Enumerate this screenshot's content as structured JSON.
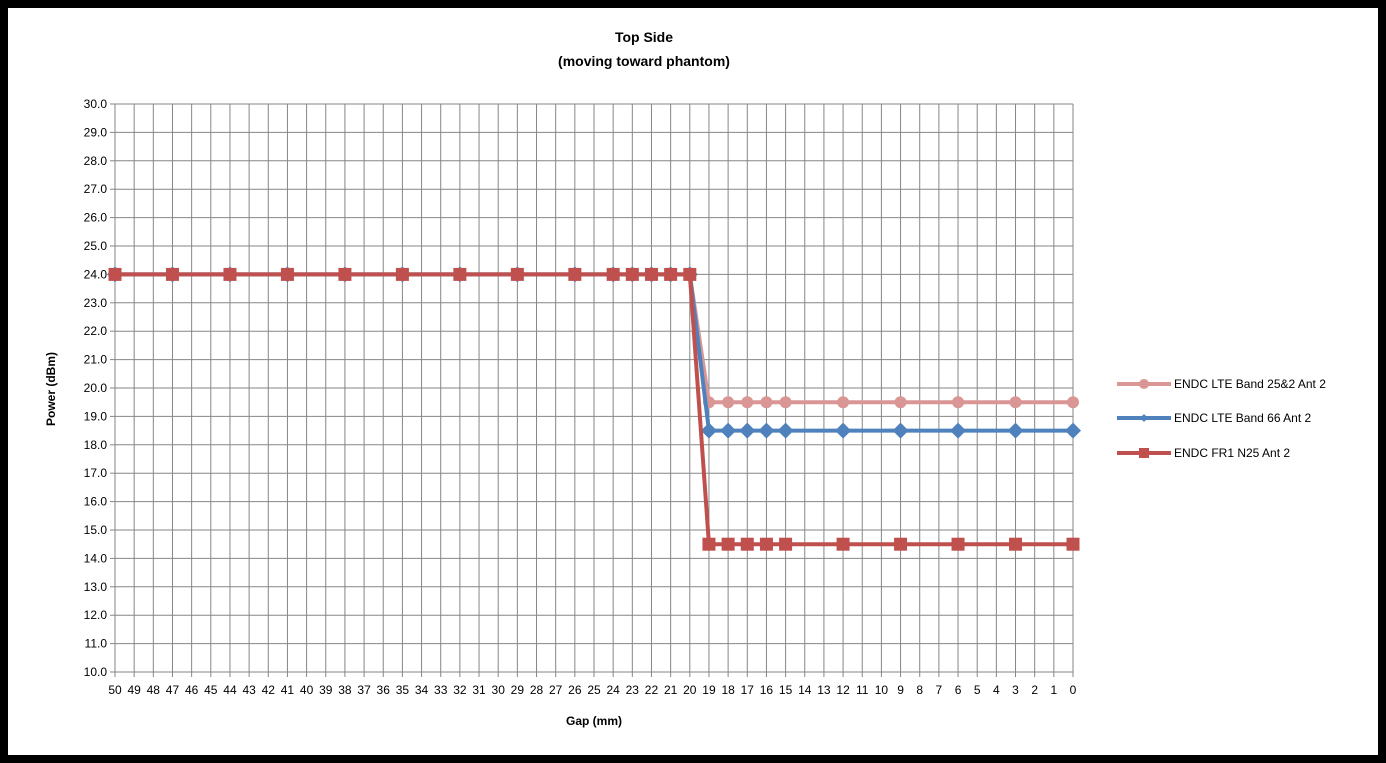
{
  "chart_data": {
    "type": "line",
    "title": [
      "Top Side",
      "(moving toward phantom)"
    ],
    "xlabel": "Gap (mm)",
    "ylabel": "Power (dBm)",
    "ylim": [
      10.0,
      30.0
    ],
    "y_ticks": [
      "10.0",
      "11.0",
      "12.0",
      "13.0",
      "14.0",
      "15.0",
      "16.0",
      "17.0",
      "18.0",
      "19.0",
      "20.0",
      "21.0",
      "22.0",
      "23.0",
      "24.0",
      "25.0",
      "26.0",
      "27.0",
      "28.0",
      "29.0",
      "30.0"
    ],
    "x_ticks": [
      "50",
      "49",
      "48",
      "47",
      "46",
      "45",
      "44",
      "43",
      "42",
      "41",
      "40",
      "39",
      "38",
      "37",
      "36",
      "35",
      "34",
      "33",
      "32",
      "31",
      "30",
      "29",
      "28",
      "27",
      "26",
      "25",
      "24",
      "23",
      "22",
      "21",
      "20",
      "19",
      "18",
      "17",
      "16",
      "15",
      "14",
      "13",
      "12",
      "11",
      "10",
      "9",
      "8",
      "7",
      "6",
      "5",
      "4",
      "3",
      "2",
      "1",
      "0"
    ],
    "x": [
      50,
      47,
      44,
      41,
      38,
      35,
      32,
      29,
      26,
      24,
      23,
      22,
      21,
      20,
      19,
      18,
      17,
      16,
      15,
      12,
      9,
      6,
      3,
      0
    ],
    "grid": true,
    "legend_position": "right",
    "series": [
      {
        "name": "ENDC LTE Band 25&2 Ant 2",
        "color": "#D99694",
        "marker": "circle",
        "values": [
          24.0,
          24.0,
          24.0,
          24.0,
          24.0,
          24.0,
          24.0,
          24.0,
          24.0,
          24.0,
          24.0,
          24.0,
          24.0,
          24.0,
          19.5,
          19.5,
          19.5,
          19.5,
          19.5,
          19.5,
          19.5,
          19.5,
          19.5,
          19.5
        ]
      },
      {
        "name": "ENDC LTE Band 66 Ant 2",
        "color": "#4F81BD",
        "marker": "diamond",
        "values": [
          24.0,
          24.0,
          24.0,
          24.0,
          24.0,
          24.0,
          24.0,
          24.0,
          24.0,
          24.0,
          24.0,
          24.0,
          24.0,
          24.0,
          18.5,
          18.5,
          18.5,
          18.5,
          18.5,
          18.5,
          18.5,
          18.5,
          18.5,
          18.5
        ]
      },
      {
        "name": "ENDC FR1 N25 Ant 2",
        "color": "#C0504D",
        "marker": "square",
        "values": [
          24.0,
          24.0,
          24.0,
          24.0,
          24.0,
          24.0,
          24.0,
          24.0,
          24.0,
          24.0,
          24.0,
          24.0,
          24.0,
          24.0,
          14.5,
          14.5,
          14.5,
          14.5,
          14.5,
          14.5,
          14.5,
          14.5,
          14.5,
          14.5
        ]
      }
    ]
  }
}
